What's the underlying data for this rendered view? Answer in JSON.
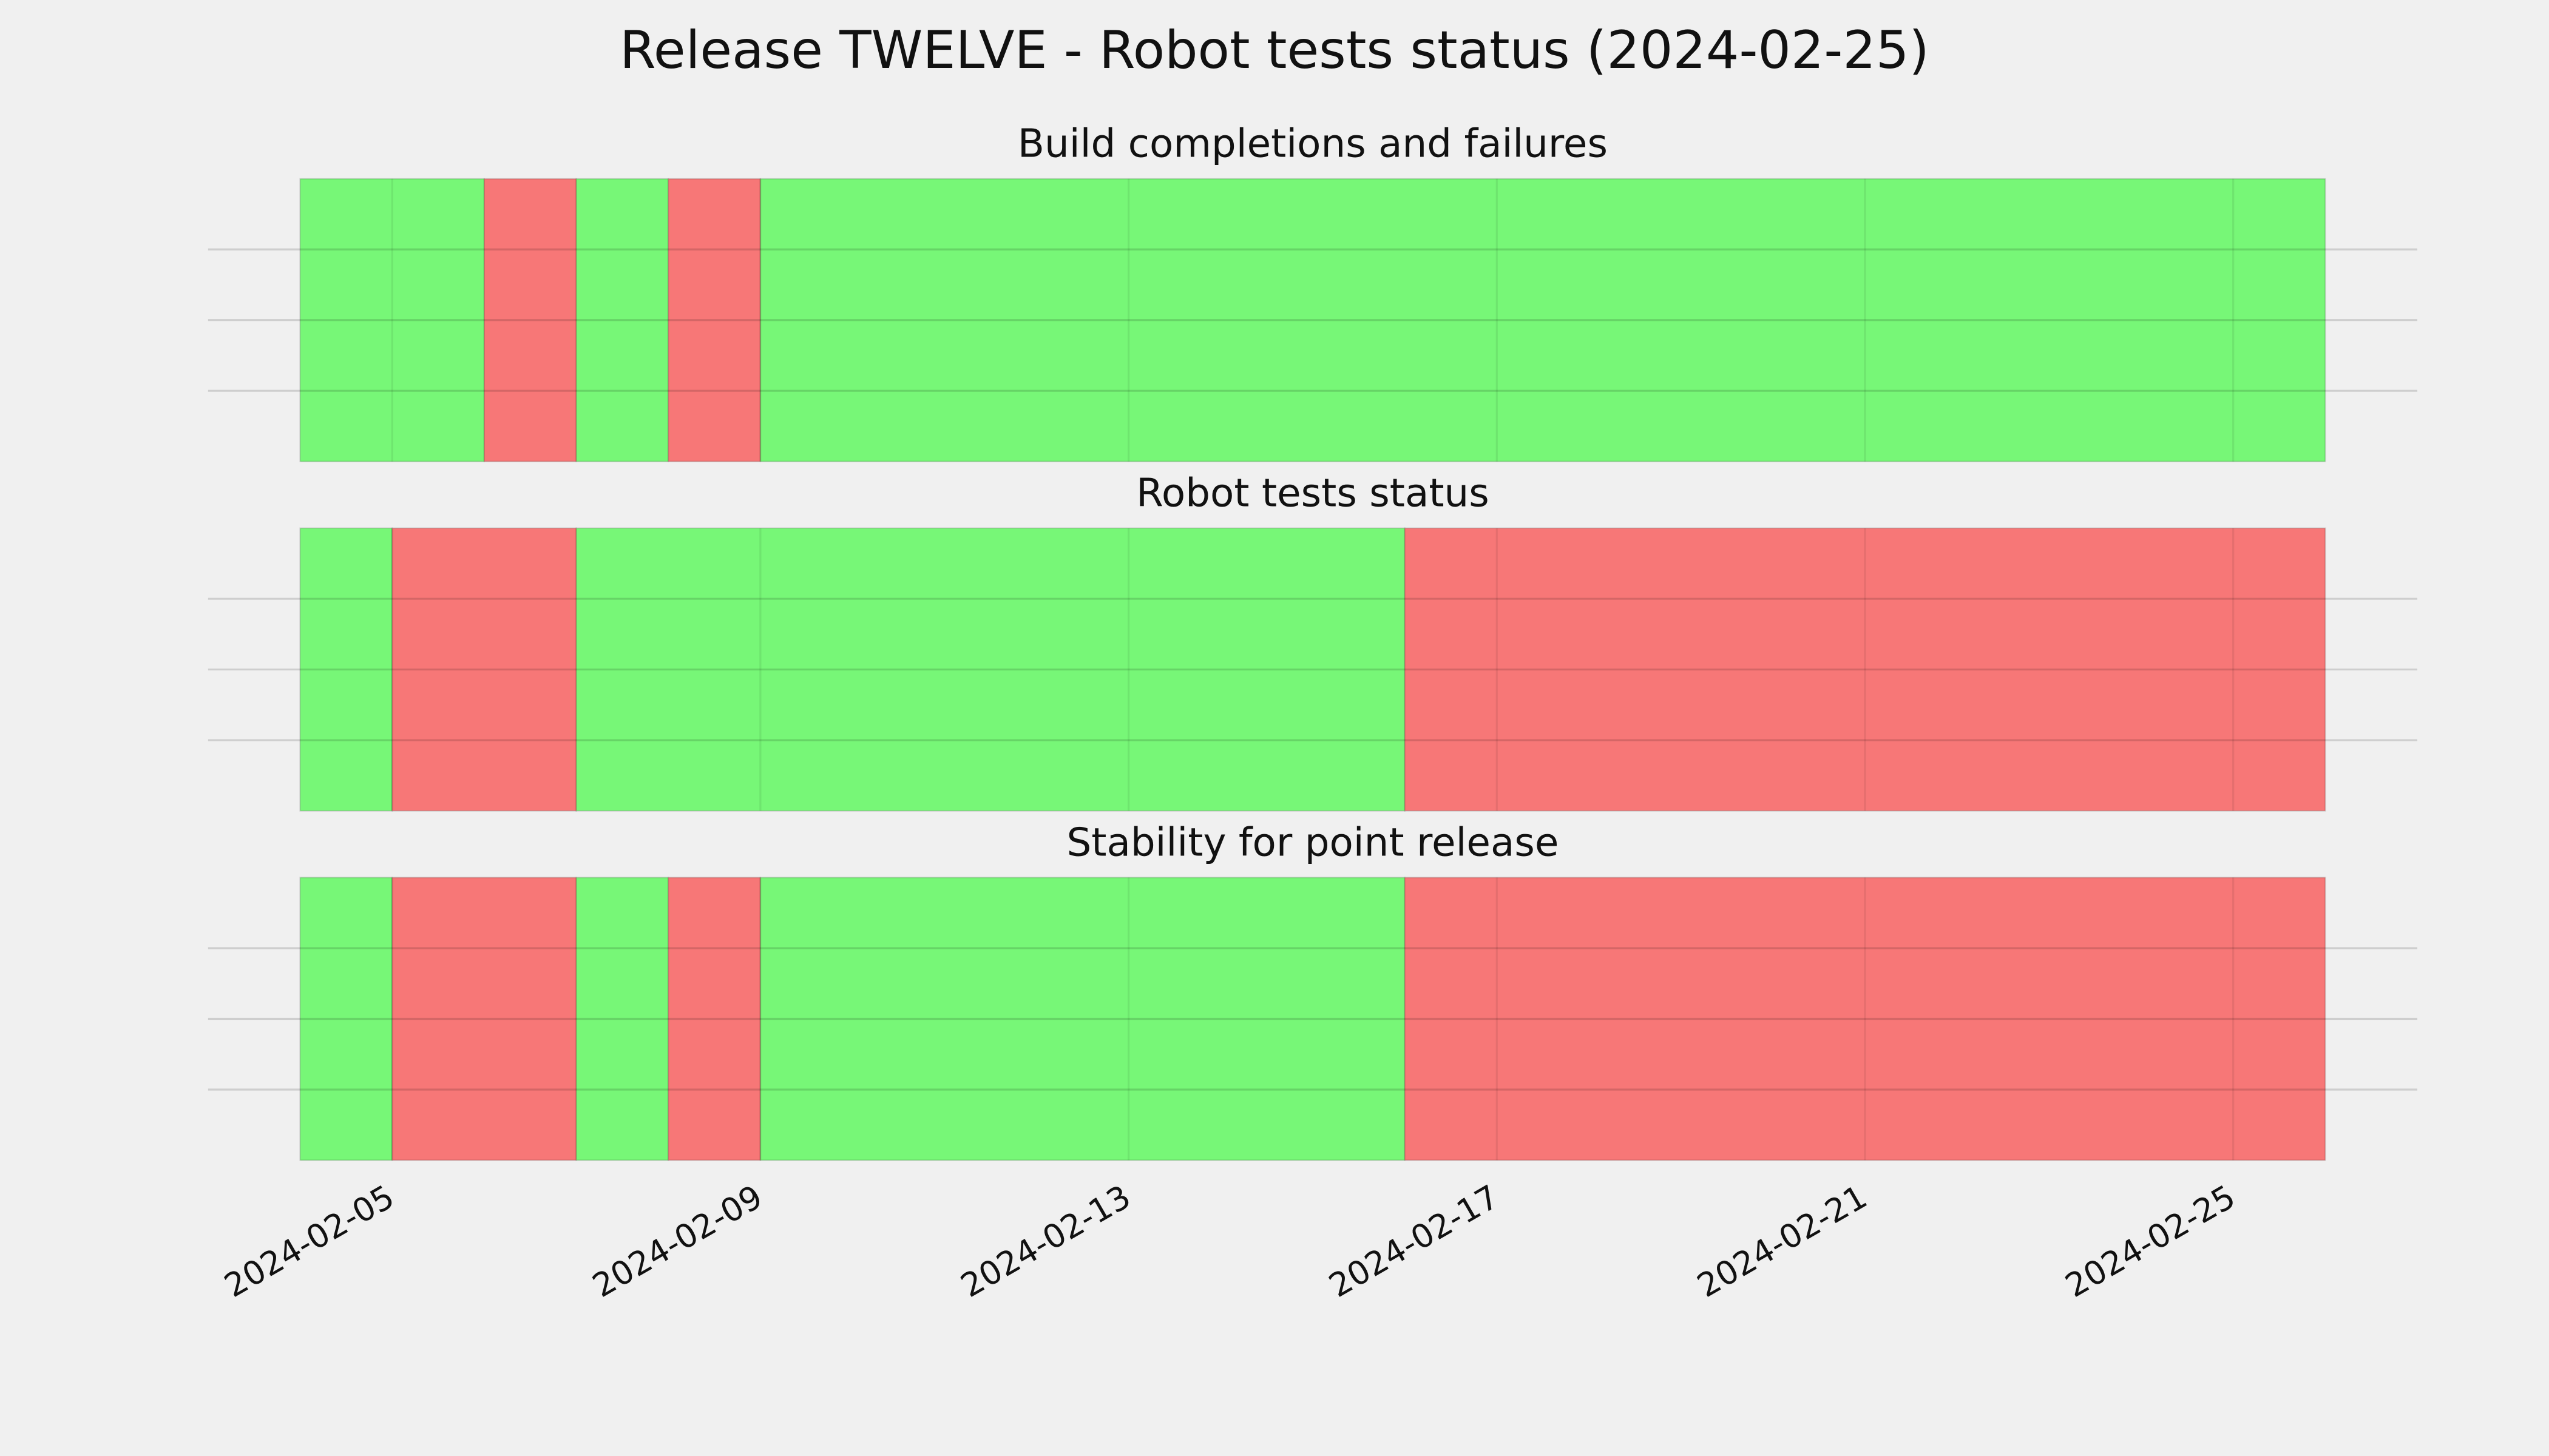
{
  "chart_data": {
    "type": "timeline",
    "title": "Release TWELVE - Robot tests status (2024-02-25)",
    "xlim": [
      "2024-02-03",
      "2024-02-27"
    ],
    "xticks": [
      "2024-02-05",
      "2024-02-09",
      "2024-02-13",
      "2024-02-17",
      "2024-02-21",
      "2024-02-25"
    ],
    "ylim": [
      0,
      1
    ],
    "yticks": [
      0.25,
      0.5,
      0.75
    ],
    "grid": true,
    "panels": [
      {
        "title": "Build completions and failures",
        "segments": [
          {
            "start": "2024-02-04",
            "end": "2024-02-06",
            "color": "#77f777"
          },
          {
            "start": "2024-02-06",
            "end": "2024-02-07",
            "color": "#f77777"
          },
          {
            "start": "2024-02-07",
            "end": "2024-02-08",
            "color": "#77f777"
          },
          {
            "start": "2024-02-08",
            "end": "2024-02-09",
            "color": "#f77777"
          },
          {
            "start": "2024-02-09",
            "end": "2024-02-26",
            "color": "#77f777"
          }
        ]
      },
      {
        "title": "Robot tests status",
        "segments": [
          {
            "start": "2024-02-04",
            "end": "2024-02-05",
            "color": "#77f777"
          },
          {
            "start": "2024-02-05",
            "end": "2024-02-07",
            "color": "#f77777"
          },
          {
            "start": "2024-02-07",
            "end": "2024-02-16",
            "color": "#77f777"
          },
          {
            "start": "2024-02-16",
            "end": "2024-02-26",
            "color": "#f77777"
          }
        ]
      },
      {
        "title": "Stability for point release",
        "segments": [
          {
            "start": "2024-02-04",
            "end": "2024-02-05",
            "color": "#77f777"
          },
          {
            "start": "2024-02-05",
            "end": "2024-02-07",
            "color": "#f77777"
          },
          {
            "start": "2024-02-07",
            "end": "2024-02-08",
            "color": "#77f777"
          },
          {
            "start": "2024-02-08",
            "end": "2024-02-09",
            "color": "#f77777"
          },
          {
            "start": "2024-02-09",
            "end": "2024-02-16",
            "color": "#77f777"
          },
          {
            "start": "2024-02-16",
            "end": "2024-02-26",
            "color": "#f77777"
          }
        ]
      }
    ]
  }
}
